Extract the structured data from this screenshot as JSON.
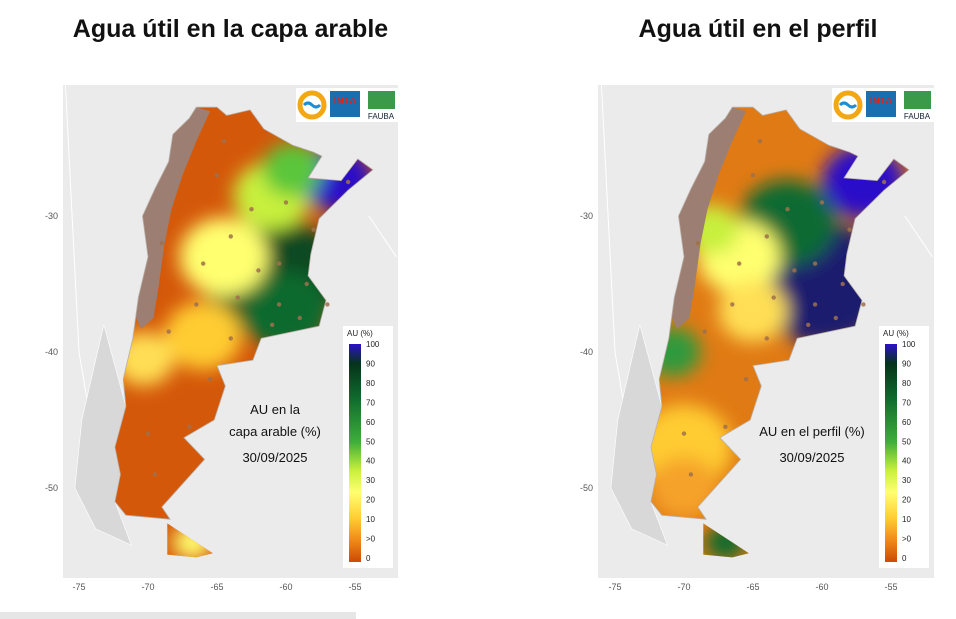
{
  "panels": [
    {
      "title": "Agua útil en la capa arable",
      "logos": [
        "INTA",
        "FAUBA"
      ],
      "lat_ticks": [
        -30,
        -40,
        -50
      ],
      "lon_ticks": [
        -75,
        -70,
        -65,
        -60,
        -55
      ],
      "legend": {
        "title": "AU (%)",
        "labels": [
          "100",
          "90",
          "80",
          "70",
          "60",
          "50",
          "40",
          "30",
          "20",
          "10",
          ">0",
          "0"
        ]
      },
      "annotation": [
        "AU en la",
        "capa arable (%)",
        "30/09/2025"
      ]
    },
    {
      "title": "Agua útil en el perfil",
      "logos": [
        "INTA",
        "FAUBA"
      ],
      "lat_ticks": [
        -30,
        -40,
        -50
      ],
      "lon_ticks": [
        -75,
        -70,
        -65,
        -60,
        -55
      ],
      "legend": {
        "title": "AU (%)",
        "labels": [
          "100",
          "90",
          "80",
          "70",
          "60",
          "50",
          "40",
          "30",
          "20",
          "10",
          ">0",
          "0"
        ]
      },
      "annotation": [
        "AU en el perfil (%)",
        "30/09/2025"
      ]
    }
  ]
}
